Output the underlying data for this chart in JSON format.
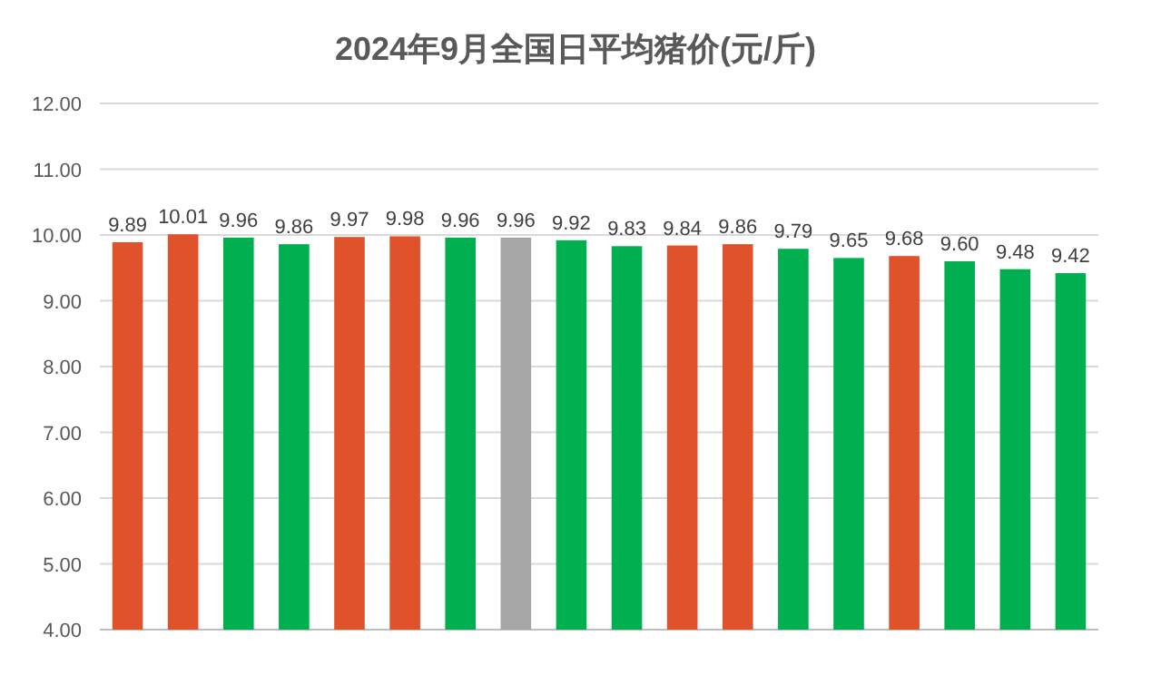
{
  "chart_data": {
    "type": "bar",
    "title": "2024年9月全国日平均猪价(元/斤)",
    "categories": [
      null,
      null,
      null,
      null,
      null,
      null,
      null,
      null,
      null,
      null,
      null,
      null,
      null,
      null,
      null,
      null,
      null,
      null
    ],
    "values": [
      9.89,
      10.01,
      9.96,
      9.86,
      9.97,
      9.98,
      9.96,
      9.96,
      9.92,
      9.83,
      9.84,
      9.86,
      9.79,
      9.65,
      9.68,
      9.6,
      9.48,
      9.42
    ],
    "value_labels": [
      "9.89",
      "10.01",
      "9.96",
      "9.86",
      "9.97",
      "9.98",
      "9.96",
      "9.96",
      "9.92",
      "9.83",
      "9.84",
      "9.86",
      "9.79",
      "9.65",
      "9.68",
      "9.60",
      "9.48",
      "9.42"
    ],
    "colors": [
      "#e0532a",
      "#e0532a",
      "#00b050",
      "#00b050",
      "#e0532a",
      "#e0532a",
      "#00b050",
      "#a6a6a6",
      "#00b050",
      "#00b050",
      "#e0532a",
      "#e0532a",
      "#00b050",
      "#00b050",
      "#e0532a",
      "#00b050",
      "#00b050",
      "#00b050"
    ],
    "ylim": [
      4,
      12
    ],
    "yticks": [
      {
        "value": 4,
        "label": "4.00"
      },
      {
        "value": 5,
        "label": "5.00"
      },
      {
        "value": 6,
        "label": "6.00"
      },
      {
        "value": 7,
        "label": "7.00"
      },
      {
        "value": 8,
        "label": "8.00"
      },
      {
        "value": 9,
        "label": "9.00"
      },
      {
        "value": 10,
        "label": "10.00"
      },
      {
        "value": 11,
        "label": "11.00"
      },
      {
        "value": 12,
        "label": "12.00"
      }
    ],
    "grid": "y"
  }
}
